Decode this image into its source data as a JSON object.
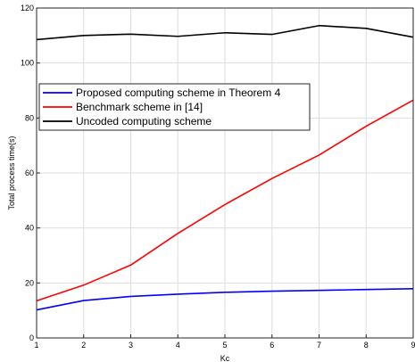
{
  "chart_data": {
    "type": "line",
    "xlabel": "Kc",
    "ylabel": "Total process time(s)",
    "x": [
      1,
      2,
      3,
      4,
      5,
      6,
      7,
      8,
      9
    ],
    "xlim": [
      1,
      9
    ],
    "ylim": [
      0,
      120
    ],
    "xticks": [
      "1",
      "2",
      "3",
      "4",
      "5",
      "6",
      "7",
      "8",
      "9"
    ],
    "yticks": [
      "0",
      "20",
      "40",
      "60",
      "80",
      "100",
      "120"
    ],
    "grid": true,
    "legend_position": "upper-left",
    "series": [
      {
        "name": "Proposed computing scheme in Theorem 4",
        "color": "#0000ff",
        "values": [
          10.2,
          13.6,
          15.1,
          15.9,
          16.6,
          17.0,
          17.3,
          17.6,
          17.9
        ]
      },
      {
        "name": "Benchmark scheme in [14]",
        "color": "#ff0000",
        "values": [
          13.5,
          19.2,
          26.5,
          38.0,
          48.5,
          58.0,
          66.5,
          77.0,
          86.5
        ]
      },
      {
        "name": "Uncoded computing scheme",
        "color": "#000000",
        "values": [
          108.5,
          110.0,
          110.5,
          109.7,
          111.0,
          110.4,
          113.6,
          112.6,
          109.4
        ]
      }
    ]
  }
}
